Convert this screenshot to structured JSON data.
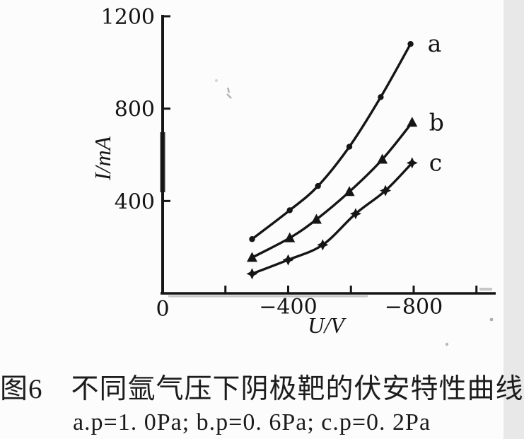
{
  "figure": {
    "caption_line1": "图6　不同氩气压下阴极靶的伏安特性曲线",
    "caption_line2": "a.p=1. 0Pa; b.p=0. 6Pa; c.p=0. 2Pa"
  },
  "chart_data": {
    "type": "line",
    "title": "",
    "xlabel": "U/V",
    "ylabel": "I/mA",
    "grid": false,
    "legend_position": "right-end-of-curves",
    "x_axis": {
      "label": "U/V",
      "origin_label": "0",
      "range": [
        0,
        -1060
      ],
      "ticks": [
        {
          "value": -200,
          "label": ""
        },
        {
          "value": -400,
          "label": "−400"
        },
        {
          "value": -600,
          "label": ""
        },
        {
          "value": -800,
          "label": "−800"
        },
        {
          "value": -1000,
          "label": ""
        }
      ]
    },
    "y_axis": {
      "label": "I/mA",
      "range": [
        0,
        1200
      ],
      "ticks": [
        {
          "value": 400,
          "label": "400"
        },
        {
          "value": 800,
          "label": "800"
        },
        {
          "value": 1200,
          "label": "1200"
        }
      ]
    },
    "series": [
      {
        "name": "a",
        "pressure": "p=1. 0Pa",
        "marker": "circle",
        "x": [
          -285,
          -405,
          -495,
          -595,
          -695,
          -790
        ],
        "y": [
          235,
          360,
          465,
          635,
          850,
          1080
        ]
      },
      {
        "name": "b",
        "pressure": "p=0. 6Pa",
        "marker": "triangle",
        "x": [
          -285,
          -405,
          -490,
          -595,
          -700,
          -795
        ],
        "y": [
          155,
          240,
          320,
          440,
          580,
          740
        ]
      },
      {
        "name": "c",
        "pressure": "p=0. 2Pa",
        "marker": "star",
        "x": [
          -285,
          -400,
          -510,
          -615,
          -710,
          -795
        ],
        "y": [
          85,
          145,
          210,
          345,
          445,
          565
        ]
      }
    ]
  },
  "colors": {
    "ink": "#151515",
    "paper": "#fcfcfc",
    "scan_shadow": "#b9b9b9"
  }
}
